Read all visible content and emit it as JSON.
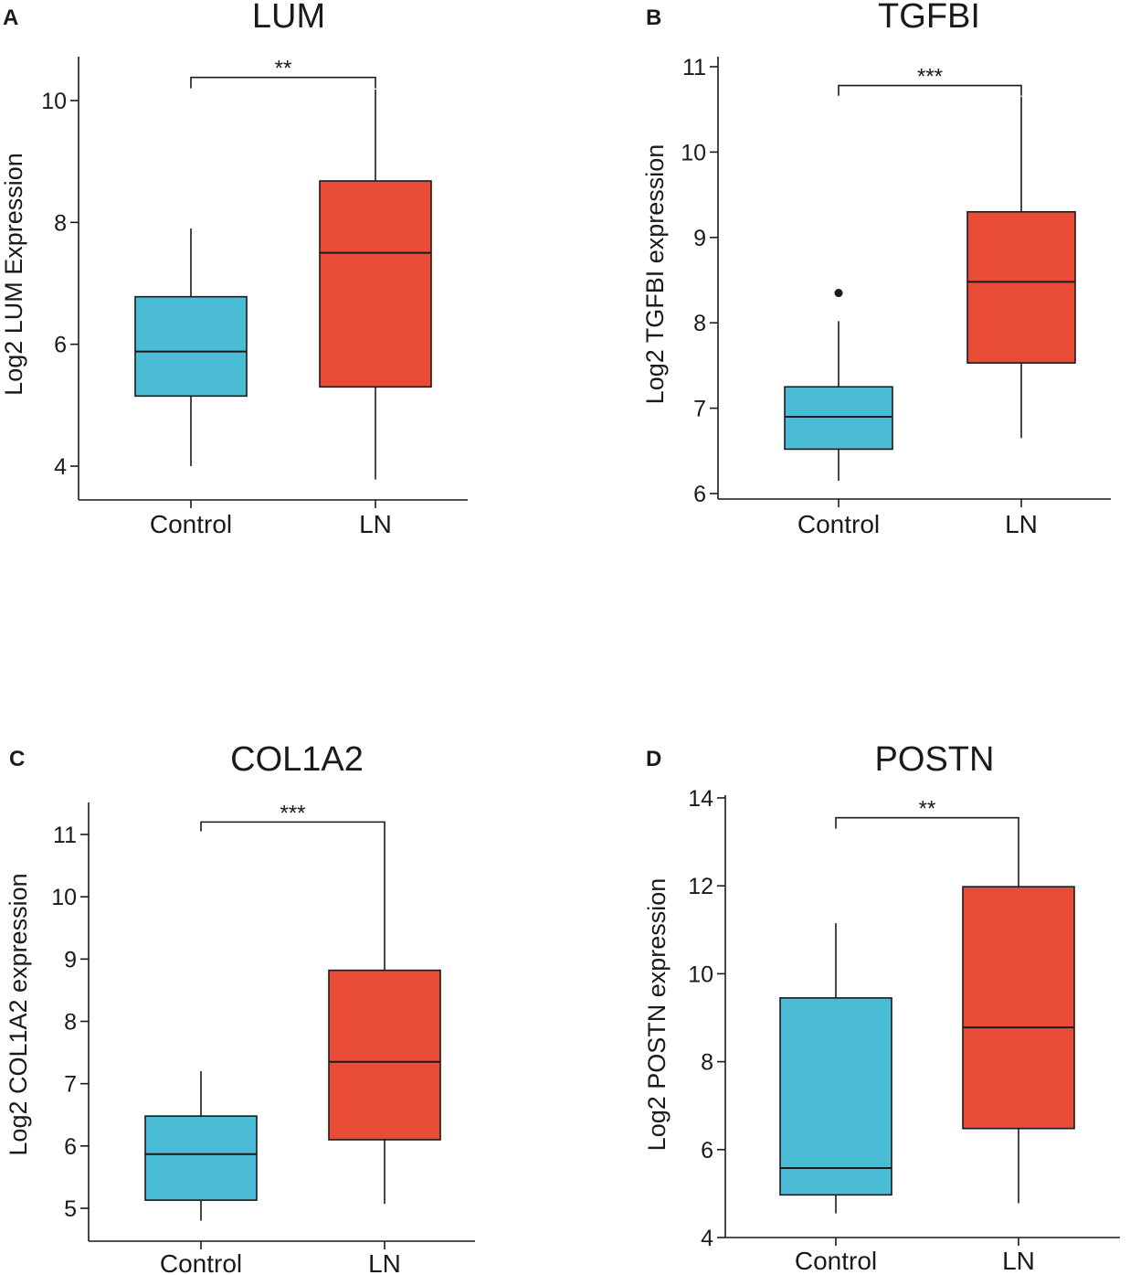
{
  "colors": {
    "control": "#4bbcd6",
    "ln": "#e84c36",
    "axis": "#1a1a1a"
  },
  "chart_data": [
    {
      "type": "box",
      "panel": "A",
      "title": "LUM",
      "ylabel": "Log2 LUM Expression",
      "ylim": [
        3.4,
        10.7
      ],
      "yticks": [
        4,
        6,
        8,
        10
      ],
      "categories": [
        "Control",
        "LN"
      ],
      "boxes": [
        {
          "name": "Control",
          "min": 4.0,
          "q1": 5.15,
          "median": 5.88,
          "q3": 6.78,
          "max": 7.9,
          "outliers": []
        },
        {
          "name": "LN",
          "min": 3.78,
          "q1": 5.3,
          "median": 7.5,
          "q3": 8.68,
          "max": 10.18,
          "outliers": []
        }
      ],
      "significance": {
        "label": "**",
        "y": 10.38,
        "left_drop": 10.2,
        "right_drop": 10.2
      }
    },
    {
      "type": "box",
      "panel": "B",
      "title": "TGFBI",
      "ylabel": "Log2 TGFBI expression",
      "ylim": [
        5.95,
        11.0
      ],
      "yticks": [
        6,
        7,
        8,
        9,
        10,
        11
      ],
      "categories": [
        "Control",
        "LN"
      ],
      "boxes": [
        {
          "name": "Control",
          "min": 6.15,
          "q1": 6.52,
          "median": 6.9,
          "q3": 7.25,
          "max": 8.02,
          "outliers": [
            8.35
          ]
        },
        {
          "name": "LN",
          "min": 6.65,
          "q1": 7.53,
          "median": 8.48,
          "q3": 9.3,
          "max": 10.65,
          "outliers": []
        }
      ],
      "significance": {
        "label": "***",
        "y": 10.78,
        "left_drop": 10.66,
        "right_drop": 10.66
      }
    },
    {
      "type": "box",
      "panel": "C",
      "title": "COL1A2",
      "ylabel": "Log2 COL1A2 expression",
      "ylim": [
        4.5,
        11.5
      ],
      "yticks": [
        5,
        6,
        7,
        8,
        9,
        10,
        11
      ],
      "categories": [
        "Control",
        "LN"
      ],
      "boxes": [
        {
          "name": "Control",
          "min": 4.8,
          "q1": 5.13,
          "median": 5.87,
          "q3": 6.48,
          "max": 7.2,
          "outliers": []
        },
        {
          "name": "LN",
          "min": 5.07,
          "q1": 6.1,
          "median": 7.35,
          "q3": 8.82,
          "max": 11.02,
          "outliers": []
        }
      ],
      "significance": {
        "label": "***",
        "y": 11.2,
        "left_drop": 11.05,
        "right_drop": 11.02
      }
    },
    {
      "type": "box",
      "panel": "D",
      "title": "POSTN",
      "ylabel": "Log2 POSTN expression",
      "ylim": [
        4.0,
        14.0
      ],
      "yticks": [
        4,
        6,
        8,
        10,
        12,
        14
      ],
      "categories": [
        "Control",
        "LN"
      ],
      "boxes": [
        {
          "name": "Control",
          "min": 4.55,
          "q1": 4.97,
          "median": 5.58,
          "q3": 9.45,
          "max": 11.15,
          "outliers": []
        },
        {
          "name": "LN",
          "min": 4.78,
          "q1": 6.48,
          "median": 8.78,
          "q3": 11.98,
          "max": 13.3,
          "outliers": []
        }
      ],
      "significance": {
        "label": "**",
        "y": 13.55,
        "left_drop": 13.3,
        "right_drop": 13.3
      }
    }
  ]
}
